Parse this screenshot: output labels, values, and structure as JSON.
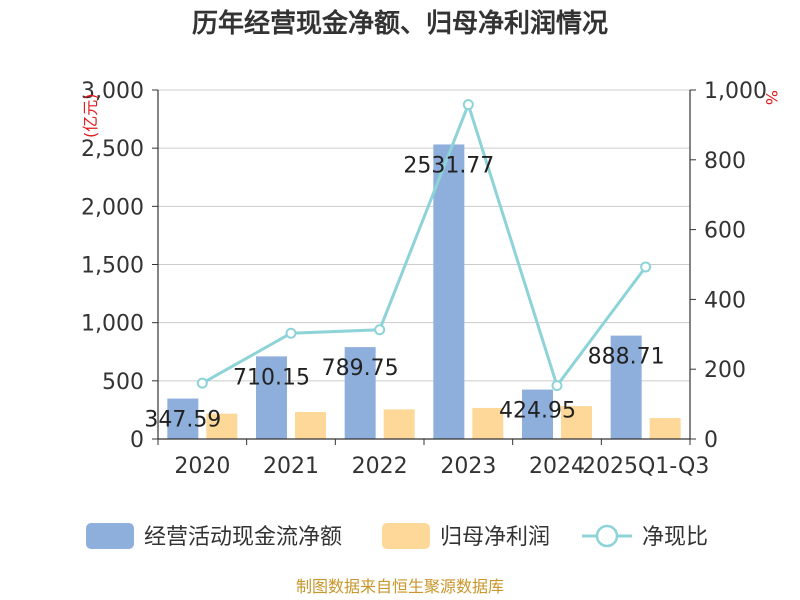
{
  "title": "历年经营现金净额、归母净利润情况",
  "source": "制图数据来自恒生聚源数据库",
  "colors": {
    "ocf": "#8eafdc",
    "profit": "#fdd898",
    "ratio": "#8dd3d7",
    "grid": "#cccccc",
    "axis": "#333333",
    "unit": "#e0191b",
    "source": "#c8962a"
  },
  "chart_data": {
    "type": "bar",
    "categories": [
      "2020",
      "2021",
      "2022",
      "2023",
      "2024",
      "2025Q1-Q3"
    ],
    "left_axis": {
      "unit": "亿元",
      "ylim": [
        0,
        3000
      ],
      "ticks": [
        "0",
        "500",
        "1,000",
        "1,500",
        "2,000",
        "2,500",
        "3,000"
      ]
    },
    "right_axis": {
      "unit": "%",
      "ylim": [
        0,
        1000
      ],
      "ticks": [
        "0",
        "200",
        "400",
        "600",
        "800",
        "1,000"
      ]
    },
    "series": [
      {
        "name": "经营活动现金流净额",
        "type": "bar",
        "axis": "left",
        "values": [
          347.59,
          710.15,
          789.75,
          2531.77,
          424.95,
          888.71
        ],
        "labels": [
          "347.59",
          "710.15",
          "789.75",
          "2531.77",
          "424.95",
          "888.71"
        ]
      },
      {
        "name": "归母净利润",
        "type": "bar",
        "axis": "left",
        "values": [
          218,
          232,
          255,
          267,
          283,
          180
        ]
      },
      {
        "name": "净现比",
        "type": "line",
        "axis": "right",
        "values": [
          160,
          303,
          313,
          958,
          153,
          493
        ]
      }
    ],
    "legend": {
      "position": "bottom",
      "items": [
        "经营活动现金流净额",
        "归母净利润",
        "净现比"
      ]
    },
    "grid": true
  }
}
